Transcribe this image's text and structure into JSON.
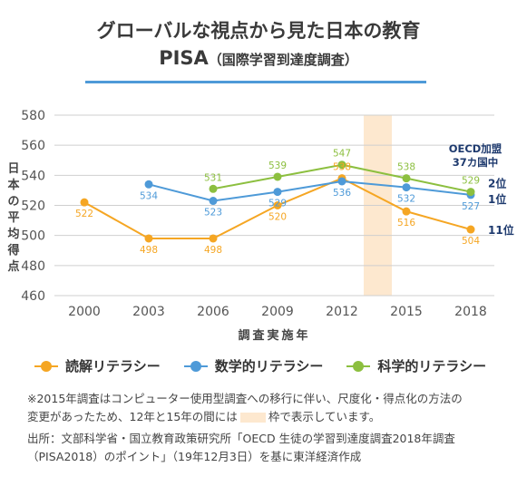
{
  "title_line1": "グローバルな視点から見た日本の教育",
  "title_pisa": "PISA",
  "title_paren": "（国際学習到達度調査）",
  "ylabel_chars": [
    "日",
    "本",
    "の",
    "平",
    "均",
    "得",
    "点"
  ],
  "oecd_note": [
    "OECD加盟",
    "37カ国中"
  ],
  "chart_data": {
    "type": "line",
    "x": [
      2000,
      2003,
      2006,
      2009,
      2012,
      2015,
      2018
    ],
    "xlabel": "調査実施年",
    "ylabel": "日本の平均得点",
    "ylim": [
      460,
      580
    ],
    "yticks": [
      460,
      480,
      500,
      520,
      540,
      560,
      580
    ],
    "grid": true,
    "highlight_between": [
      2012,
      2015
    ],
    "series": [
      {
        "name": "読解リテラシー",
        "color": "#f5a623",
        "values": [
          522,
          498,
          498,
          520,
          538,
          516,
          504
        ],
        "rank": "11位"
      },
      {
        "name": "数学的リテラシー",
        "color": "#4e9ad8",
        "values": [
          null,
          534,
          523,
          529,
          536,
          532,
          527
        ],
        "rank": "1位"
      },
      {
        "name": "科学的リテラシー",
        "color": "#8cbf3f",
        "values": [
          null,
          null,
          531,
          539,
          547,
          538,
          529
        ],
        "rank": "2位"
      }
    ]
  },
  "notes": {
    "line1": "※2015年調査はコンピューター使用型調査への移行に伴い、尺度化・得点化の方法の",
    "line2a": "変更があったため、12年と15年の間には",
    "line2b": "枠で表示しています。",
    "source1": "出所：文部科学省・国立教育政策研究所「OECD 生徒の学習到達度調査2018年調査",
    "source2": "（PISA2018）のポイント」（19年12月3日）を基に東洋経済作成"
  }
}
